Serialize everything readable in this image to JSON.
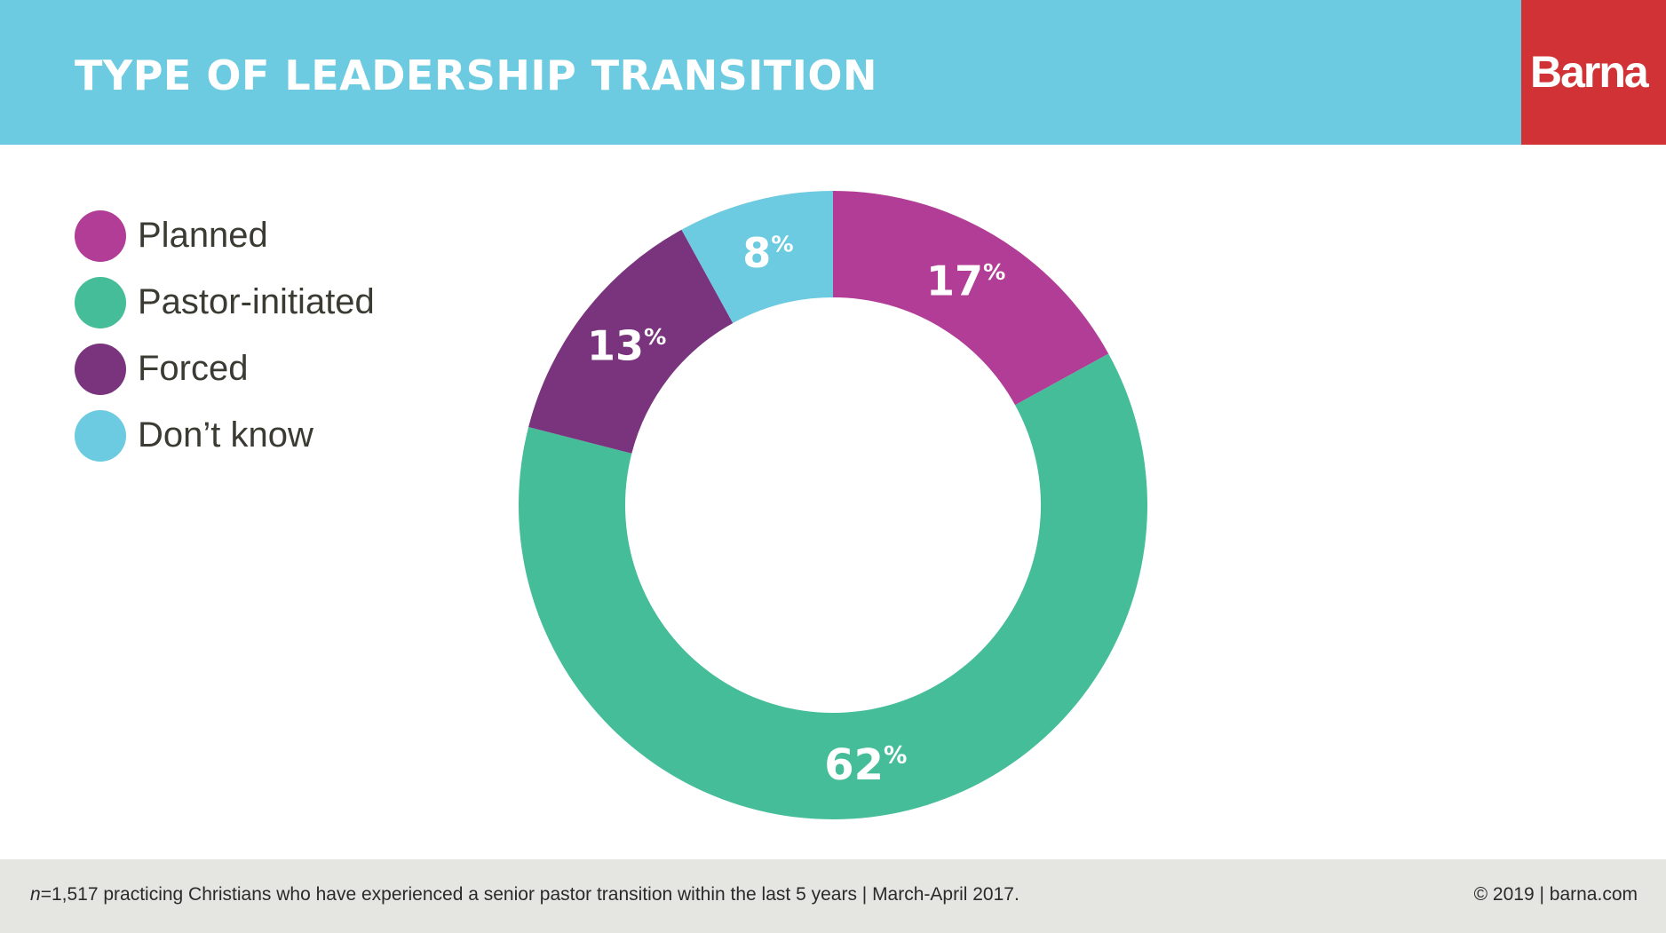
{
  "header": {
    "title": "TYPE OF LEADERSHIP TRANSITION",
    "logo": "Barna",
    "background_color": "#6ccbe0",
    "logo_color": "#d03236"
  },
  "chart_data": {
    "type": "pie",
    "subtype": "donut",
    "title": "TYPE OF LEADERSHIP TRANSITION",
    "unit": "%",
    "legend_position": "top-left",
    "start_angle_deg": 0,
    "direction": "clockwise",
    "categories": [
      "Planned",
      "Pastor-initiated",
      "Forced",
      "Don’t know"
    ],
    "values": [
      17,
      62,
      13,
      8
    ],
    "value_labels": [
      "17",
      "62",
      "13",
      "8"
    ],
    "colors": [
      "#b23d96",
      "#44bd98",
      "#7a347e",
      "#6ccbe0"
    ]
  },
  "footer": {
    "note_n": "n",
    "note_rest": "=1,517 practicing Christians who have experienced a senior pastor transition within the last 5 years | March-April 2017.",
    "copyright": "© 2019 | barna.com"
  }
}
